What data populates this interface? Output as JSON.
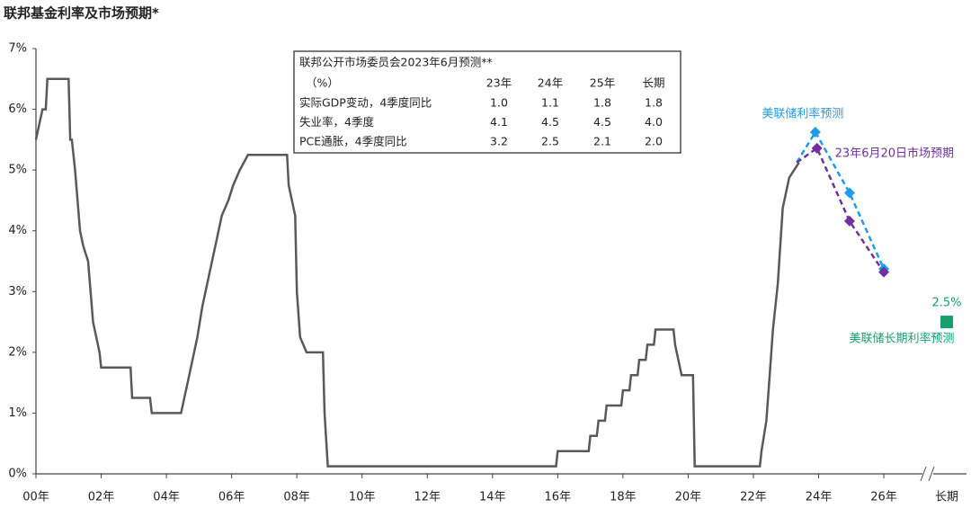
{
  "chart_data": {
    "type": "line",
    "title": "联邦基金利率及市场预期*",
    "xlim": [
      2000,
      2027
    ],
    "ylim": [
      0,
      7
    ],
    "xticks": [
      {
        "value": 2000,
        "label": "00年"
      },
      {
        "value": 2002,
        "label": "02年"
      },
      {
        "value": 2004,
        "label": "04年"
      },
      {
        "value": 2006,
        "label": "06年"
      },
      {
        "value": 2008,
        "label": "08年"
      },
      {
        "value": 2010,
        "label": "10年"
      },
      {
        "value": 2012,
        "label": "12年"
      },
      {
        "value": 2014,
        "label": "14年"
      },
      {
        "value": 2016,
        "label": "16年"
      },
      {
        "value": 2018,
        "label": "18年"
      },
      {
        "value": 2020,
        "label": "20年"
      },
      {
        "value": 2022,
        "label": "22年"
      },
      {
        "value": 2024,
        "label": "24年"
      },
      {
        "value": 2026,
        "label": "26年"
      }
    ],
    "yticks": [
      {
        "value": 0,
        "label": "0%"
      },
      {
        "value": 1,
        "label": "1%"
      },
      {
        "value": 2,
        "label": "2%"
      },
      {
        "value": 3,
        "label": "3%"
      },
      {
        "value": 4,
        "label": "4%"
      },
      {
        "value": 5,
        "label": "5%"
      },
      {
        "value": 6,
        "label": "6%"
      },
      {
        "value": 7,
        "label": "7%"
      }
    ],
    "series": [
      {
        "color": "#595959",
        "x": [
          2000.0,
          2000.1,
          2000.2,
          2000.3,
          2000.35,
          2001.0,
          2001.05,
          2001.1,
          2001.2,
          2001.35,
          2001.45,
          2001.6,
          2001.75,
          2001.95,
          2002.0,
          2002.9,
          2002.95,
          2003.5,
          2003.55,
          2004.45,
          2004.55,
          2004.65,
          2004.75,
          2004.95,
          2005.1,
          2005.3,
          2005.5,
          2005.7,
          2005.9,
          2006.05,
          2006.25,
          2006.5,
          2007.7,
          2007.75,
          2007.85,
          2007.95,
          2008.0,
          2008.1,
          2008.3,
          2008.8,
          2008.85,
          2008.95,
          2015.95,
          2016.0,
          2016.95,
          2017.0,
          2017.2,
          2017.25,
          2017.45,
          2017.5,
          2017.95,
          2018.0,
          2018.2,
          2018.25,
          2018.45,
          2018.5,
          2018.7,
          2018.75,
          2018.95,
          2019.0,
          2019.55,
          2019.6,
          2019.7,
          2019.8,
          2020.15,
          2020.2,
          2022.2,
          2022.25,
          2022.4,
          2022.5,
          2022.6,
          2022.75,
          2022.9,
          2023.1,
          2023.4
        ],
        "values": [
          5.5,
          5.75,
          6.0,
          6.0,
          6.5,
          6.5,
          5.5,
          5.5,
          5.0,
          4.0,
          3.75,
          3.5,
          2.5,
          2.0,
          1.75,
          1.75,
          1.25,
          1.25,
          1.0,
          1.0,
          1.25,
          1.5,
          1.75,
          2.25,
          2.75,
          3.25,
          3.75,
          4.25,
          4.5,
          4.75,
          5.0,
          5.25,
          5.25,
          4.75,
          4.5,
          4.25,
          3.0,
          2.25,
          2.0,
          2.0,
          1.0,
          0.125,
          0.125,
          0.375,
          0.375,
          0.625,
          0.625,
          0.875,
          0.875,
          1.125,
          1.125,
          1.375,
          1.375,
          1.625,
          1.625,
          1.875,
          1.875,
          2.125,
          2.125,
          2.375,
          2.375,
          2.125,
          1.875,
          1.625,
          1.625,
          0.125,
          0.125,
          0.375,
          0.875,
          1.625,
          2.375,
          3.125,
          4.375,
          4.875,
          5.125
        ]
      },
      {
        "name": "美联储利率预测",
        "color": "#1e9be9",
        "dashed": true,
        "marker": "diamond",
        "x": [
          2023.33,
          2023.9,
          2024.95,
          2026.0
        ],
        "values": [
          5.125,
          5.625,
          4.625,
          3.375
        ]
      },
      {
        "name": "23年6月20日市场预期",
        "color": "#7030a0",
        "dashed": true,
        "marker": "diamond",
        "x": [
          2023.33,
          2023.95,
          2024.95,
          2026.0
        ],
        "values": [
          5.125,
          5.36,
          4.16,
          3.32
        ]
      }
    ],
    "long_run": {
      "label": "长期",
      "name": "美联储长期利率预测",
      "value": 2.5,
      "value_label": "2.5%",
      "color": "#15a06e"
    },
    "table": {
      "title": "联邦公开市场委员会2023年6月预测**",
      "header": [
        "（%）",
        "23年",
        "24年",
        "25年",
        "长期"
      ],
      "rows": [
        [
          "实际GDP变动，4季度同比",
          "1.0",
          "1.1",
          "1.8",
          "1.8"
        ],
        [
          "失业率，4季度",
          "4.1",
          "4.5",
          "4.5",
          "4.0"
        ],
        [
          "PCE通胀，4季度同比",
          "3.2",
          "2.5",
          "2.1",
          "2.0"
        ]
      ]
    }
  }
}
